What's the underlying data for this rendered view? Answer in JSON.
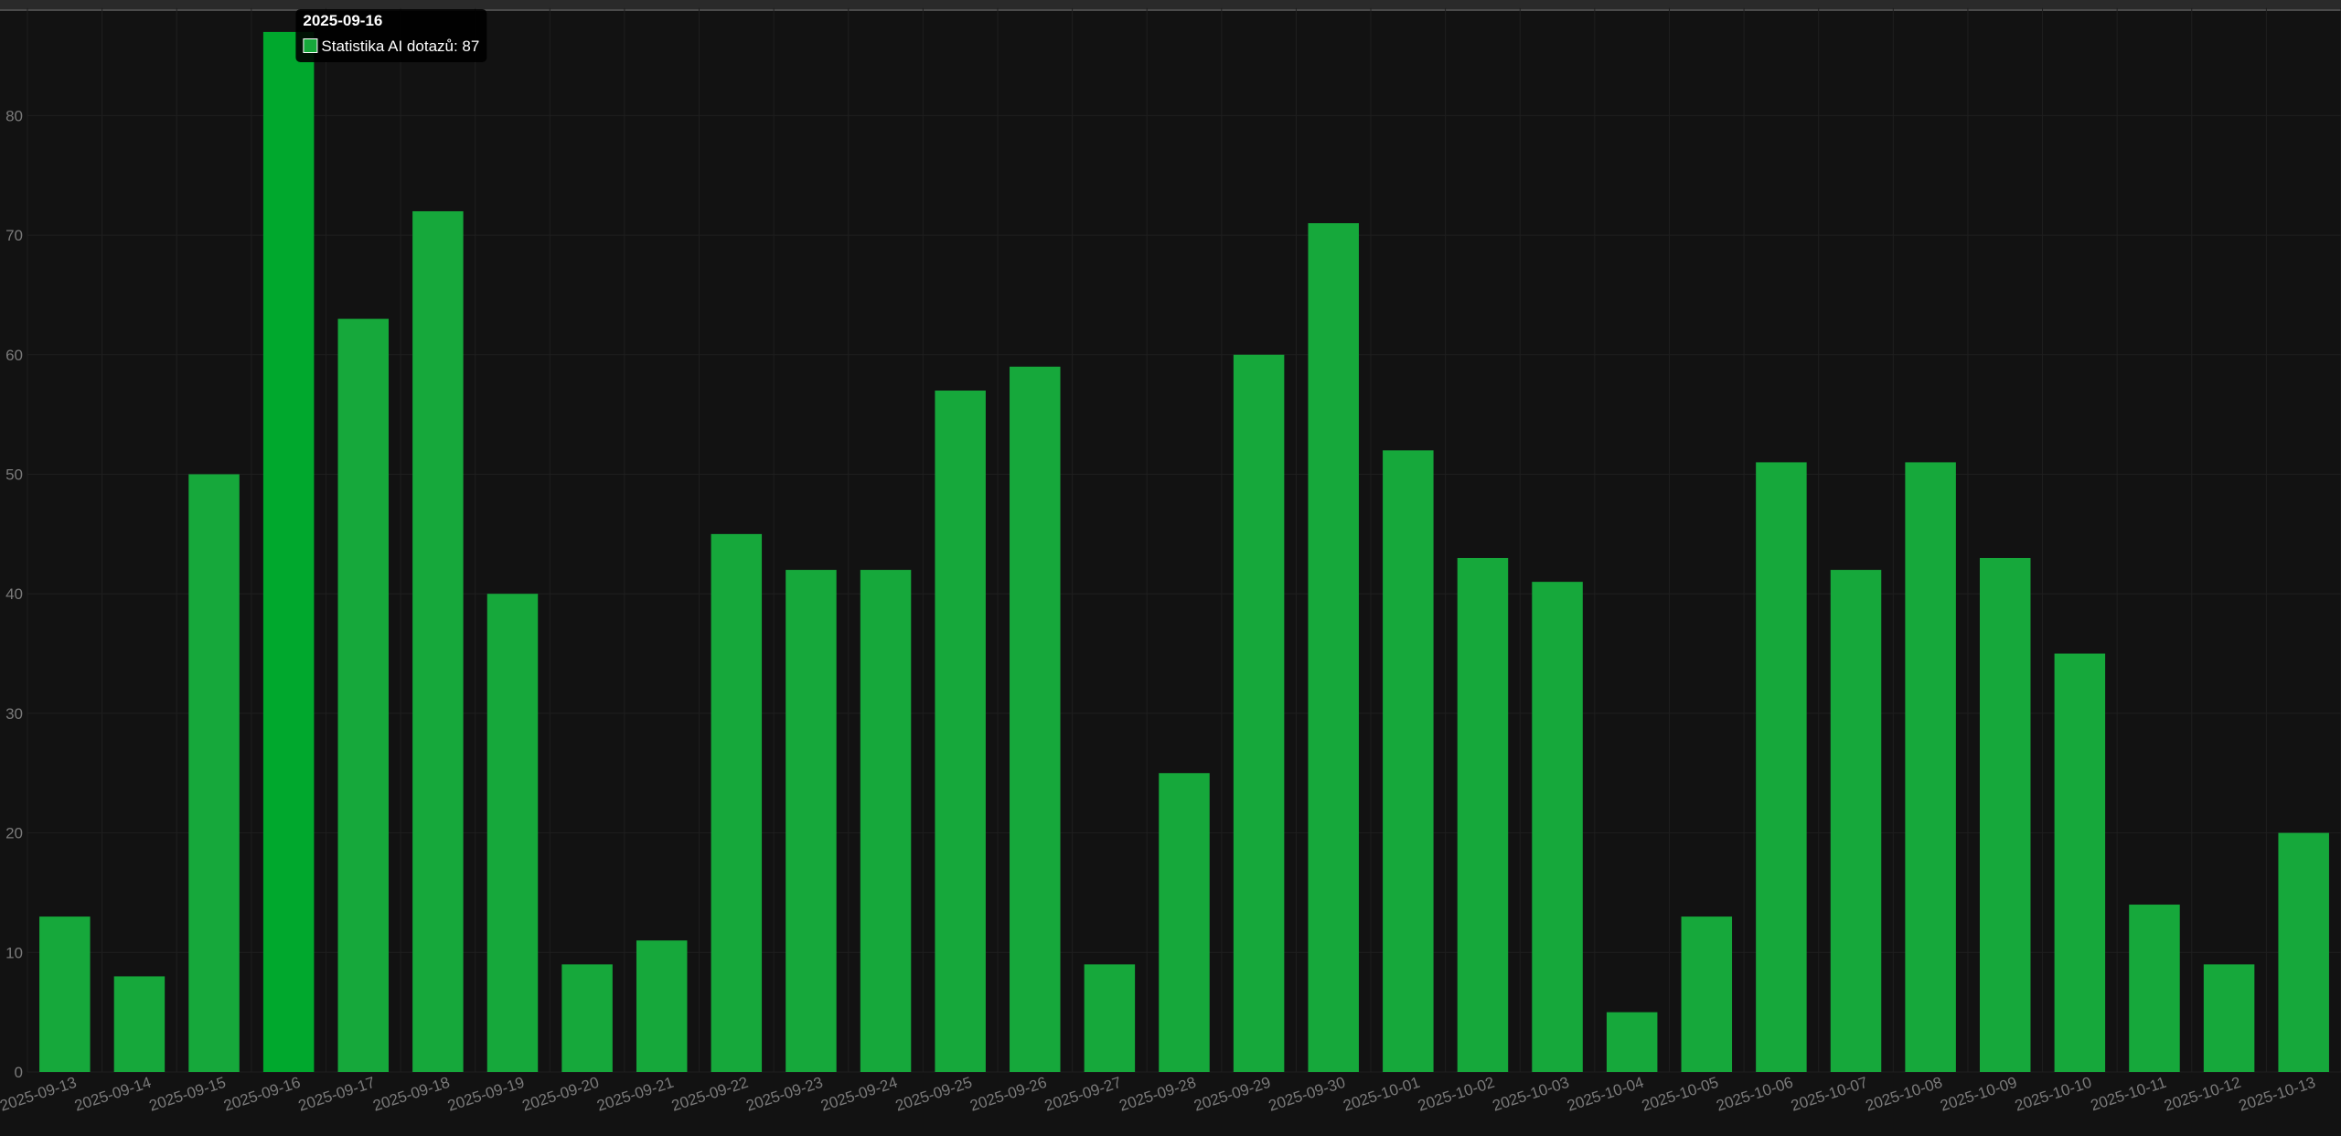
{
  "chart_data": {
    "type": "bar",
    "categories": [
      "2025-09-13",
      "2025-09-14",
      "2025-09-15",
      "2025-09-16",
      "2025-09-17",
      "2025-09-18",
      "2025-09-19",
      "2025-09-20",
      "2025-09-21",
      "2025-09-22",
      "2025-09-23",
      "2025-09-24",
      "2025-09-25",
      "2025-09-26",
      "2025-09-27",
      "2025-09-28",
      "2025-09-29",
      "2025-09-30",
      "2025-10-01",
      "2025-10-02",
      "2025-10-03",
      "2025-10-04",
      "2025-10-05",
      "2025-10-06",
      "2025-10-07",
      "2025-10-08",
      "2025-10-09",
      "2025-10-10",
      "2025-10-11",
      "2025-10-12",
      "2025-10-13"
    ],
    "series": [
      {
        "name": "Statistika AI dotazů",
        "values": [
          13,
          8,
          50,
          87,
          63,
          72,
          40,
          9,
          11,
          45,
          42,
          42,
          57,
          59,
          9,
          25,
          60,
          71,
          52,
          43,
          41,
          5,
          13,
          51,
          42,
          51,
          43,
          35,
          14,
          9,
          20
        ]
      }
    ],
    "ylim": [
      0,
      89
    ],
    "yticks": [
      0,
      10,
      20,
      30,
      40,
      50,
      60,
      70,
      80
    ],
    "grid": true,
    "colors": {
      "bar": "#16a83b",
      "bar_hover": "#00a82d",
      "tooltip_bg": "#000000"
    }
  },
  "tooltip": {
    "title": "2025-09-16",
    "label": "Statistika AI dotazů: 87",
    "index": 3
  }
}
